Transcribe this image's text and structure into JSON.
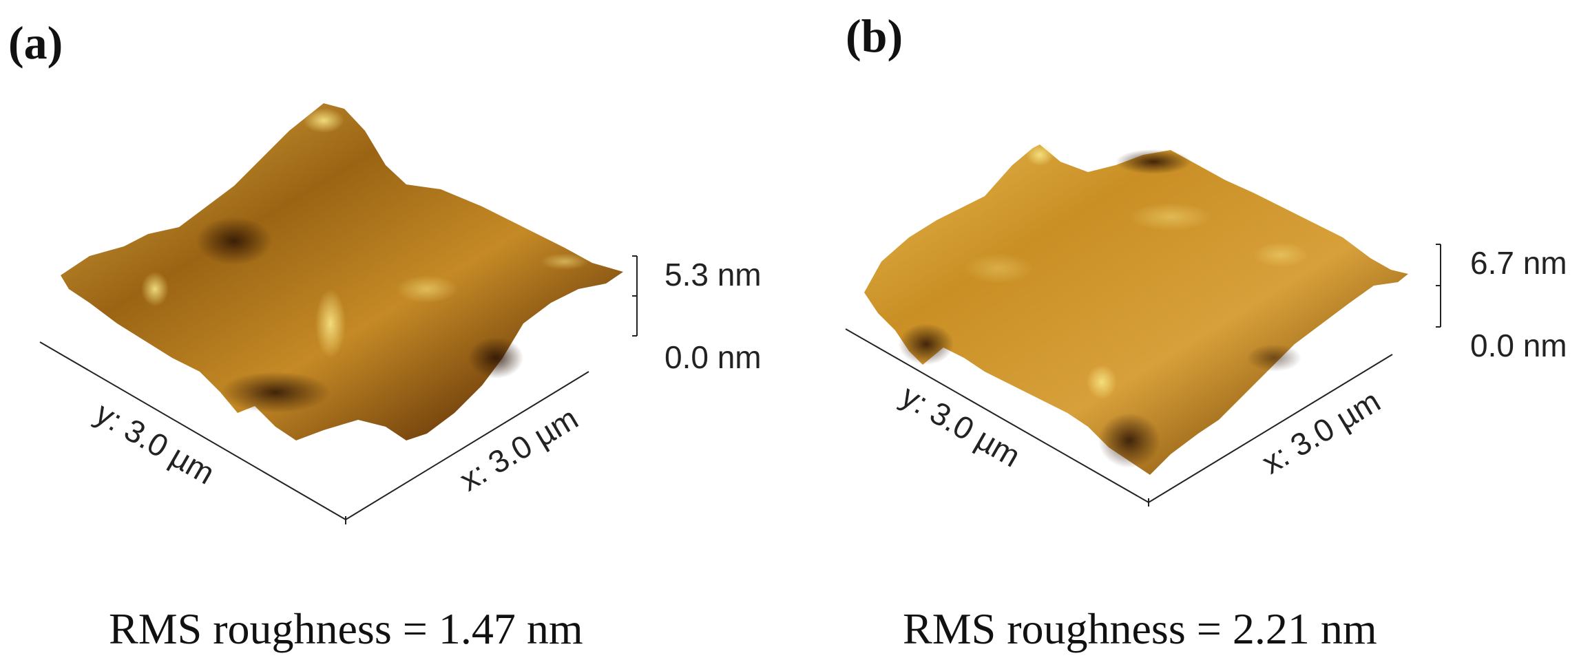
{
  "panels": [
    {
      "label": "(a)",
      "z_max": "5.3 nm",
      "z_min": "0.0 nm",
      "y_axis": "y: 3.0 µm",
      "x_axis": "x: 3.0 µm",
      "rms": "RMS roughness = 1.47 nm"
    },
    {
      "label": "(b)",
      "z_max": "6.7 nm",
      "z_min": "0.0 nm",
      "y_axis": "y: 3.0 µm",
      "x_axis": "x: 3.0 µm",
      "rms": "RMS roughness = 2.21 nm"
    }
  ],
  "colors": {
    "surface_dark": "#3a1f08",
    "surface_mid": "#8a5710",
    "surface_light": "#d7a23a",
    "surface_highlight": "#f4e07a"
  }
}
